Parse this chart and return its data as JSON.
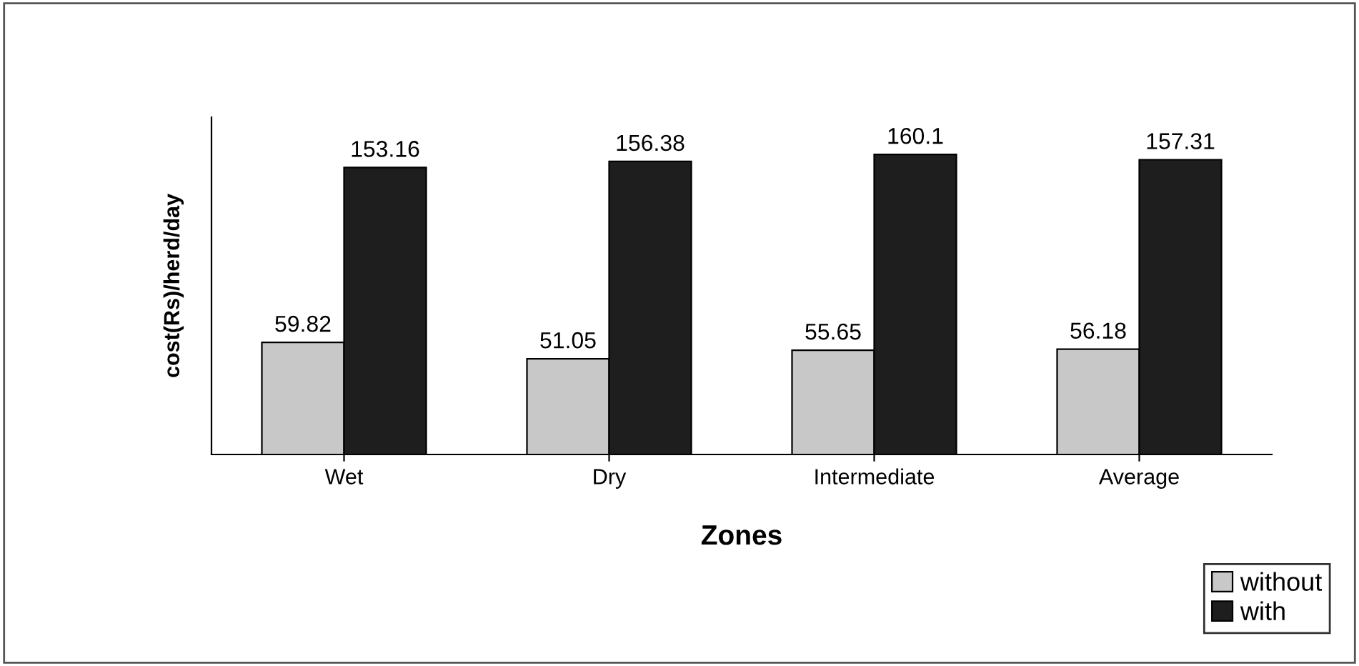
{
  "chart_data": {
    "type": "bar",
    "xlabel": "Zones",
    "ylabel": "cost(Rs)/herd/day",
    "categories": [
      "Wet",
      "Dry",
      "Intermediate",
      "Average"
    ],
    "series": [
      {
        "name": "without",
        "color": "#c8c8c8",
        "values": [
          59.82,
          51.05,
          55.65,
          56.18
        ]
      },
      {
        "name": "with",
        "color": "#1e1e1e",
        "values": [
          153.16,
          156.38,
          160.1,
          157.31
        ]
      }
    ],
    "ylim": [
      0,
      180
    ],
    "tick_labels": "x",
    "data_labels": true,
    "legend": "bottom right",
    "grid": false
  }
}
